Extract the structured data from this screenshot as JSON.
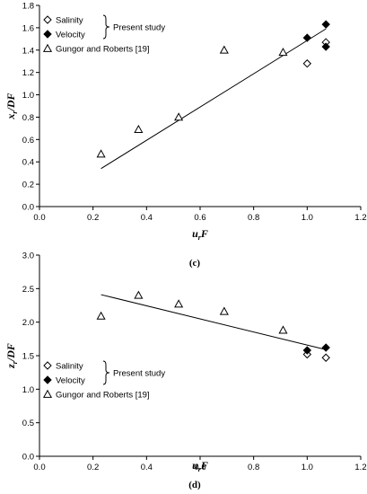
{
  "chart_data": [
    {
      "type": "scatter",
      "panel_label": "(c)",
      "xlabel": {
        "main": "u",
        "sub": "r",
        "tail": "F"
      },
      "ylabel": {
        "main": "x",
        "sub": "r",
        "tail": "/DF"
      },
      "xlim": [
        0.0,
        1.2
      ],
      "ylim": [
        0.0,
        1.8
      ],
      "xticks": [
        "0.0",
        "0.2",
        "0.4",
        "0.6",
        "0.8",
        "1.0",
        "1.2"
      ],
      "yticks": [
        "0.0",
        "0.2",
        "0.4",
        "0.6",
        "0.8",
        "1.0",
        "1.2",
        "1.4",
        "1.6",
        "1.8"
      ],
      "grid": false,
      "legend_position": "top-left",
      "legend_group_label": "Present study",
      "series": [
        {
          "name": "Salinity",
          "marker": "diamond-open",
          "points": [
            [
              1.0,
              1.28
            ],
            [
              1.07,
              1.47
            ]
          ]
        },
        {
          "name": "Velocity",
          "marker": "diamond-filled",
          "points": [
            [
              1.0,
              1.51
            ],
            [
              1.07,
              1.63
            ],
            [
              1.07,
              1.43
            ]
          ]
        },
        {
          "name": "Gungor and Roberts  [19]",
          "marker": "triangle-open",
          "points": [
            [
              0.23,
              0.47
            ],
            [
              0.37,
              0.69
            ],
            [
              0.52,
              0.8
            ],
            [
              0.69,
              1.4
            ],
            [
              0.91,
              1.38
            ]
          ]
        }
      ],
      "trendline": [
        [
          0.23,
          0.34
        ],
        [
          1.07,
          1.59
        ]
      ]
    },
    {
      "type": "scatter",
      "panel_label": "(d)",
      "xlabel": {
        "main": "u",
        "sub": "r",
        "tail": "F"
      },
      "ylabel": {
        "main": "z",
        "sub": "r",
        "tail": "/DF"
      },
      "xlim": [
        0.0,
        1.2
      ],
      "ylim": [
        0.0,
        3.0
      ],
      "xticks": [
        "0.0",
        "0.2",
        "0.4",
        "0.6",
        "0.8",
        "1.0",
        "1.2"
      ],
      "yticks": [
        "0.0",
        "0.5",
        "1.0",
        "1.5",
        "2.0",
        "2.5",
        "3.0"
      ],
      "grid": false,
      "legend_position": "bottom-left",
      "legend_group_label": "Present study",
      "series": [
        {
          "name": "Salinity",
          "marker": "diamond-open",
          "points": [
            [
              1.0,
              1.52
            ],
            [
              1.07,
              1.47
            ]
          ]
        },
        {
          "name": "Velocity",
          "marker": "diamond-filled",
          "points": [
            [
              1.0,
              1.58
            ],
            [
              1.07,
              1.62
            ]
          ]
        },
        {
          "name": "Gungor and Roberts  [19]",
          "marker": "triangle-open",
          "points": [
            [
              0.23,
              2.09
            ],
            [
              0.37,
              2.4
            ],
            [
              0.52,
              2.27
            ],
            [
              0.69,
              2.16
            ],
            [
              0.91,
              1.88
            ]
          ]
        }
      ],
      "trendline": [
        [
          0.23,
          2.41
        ],
        [
          1.07,
          1.59
        ]
      ]
    }
  ]
}
